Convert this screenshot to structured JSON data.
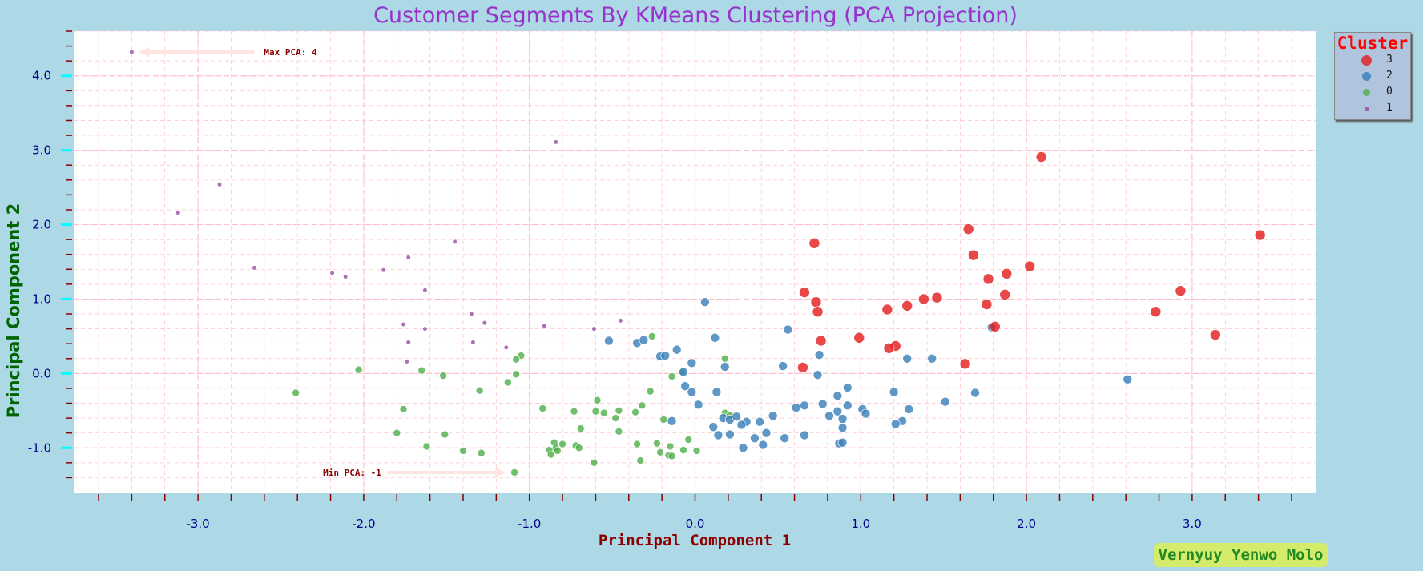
{
  "chart_data": {
    "type": "scatter",
    "title": "Customer Segments By KMeans Clustering (PCA Projection)",
    "xlabel": "Principal Component 1",
    "ylabel": "Principal Component 2",
    "xlim": [
      -3.75,
      3.75
    ],
    "ylim": [
      -1.6,
      4.6
    ],
    "x_ticks": [
      -3.0,
      -2.0,
      -1.0,
      0.0,
      1.0,
      2.0,
      3.0
    ],
    "y_ticks": [
      -1.0,
      0.0,
      1.0,
      2.0,
      3.0,
      4.0
    ],
    "grid": true,
    "legend": {
      "title": "Cluster",
      "position": "outside-top-right"
    },
    "series": [
      {
        "name": "3",
        "color": "#e41a1c",
        "points": [
          [
            2.09,
            2.91
          ],
          [
            3.41,
            1.86
          ],
          [
            1.65,
            1.94
          ],
          [
            1.68,
            1.59
          ],
          [
            0.72,
            1.75
          ],
          [
            2.02,
            1.44
          ],
          [
            1.88,
            1.34
          ],
          [
            1.77,
            1.27
          ],
          [
            2.93,
            1.11
          ],
          [
            0.66,
            1.09
          ],
          [
            1.87,
            1.06
          ],
          [
            1.46,
            1.02
          ],
          [
            1.38,
            1.0
          ],
          [
            0.73,
            0.96
          ],
          [
            1.28,
            0.91
          ],
          [
            1.76,
            0.93
          ],
          [
            1.16,
            0.86
          ],
          [
            0.74,
            0.83
          ],
          [
            2.78,
            0.83
          ],
          [
            1.81,
            0.63
          ],
          [
            3.14,
            0.52
          ],
          [
            0.76,
            0.44
          ],
          [
            0.99,
            0.48
          ],
          [
            1.21,
            0.37
          ],
          [
            1.17,
            0.34
          ],
          [
            1.63,
            0.13
          ],
          [
            0.65,
            0.08
          ]
        ]
      },
      {
        "name": "2",
        "color": "#377eb8",
        "points": [
          [
            0.06,
            0.96
          ],
          [
            -0.52,
            0.44
          ],
          [
            -0.35,
            0.41
          ],
          [
            -0.31,
            0.45
          ],
          [
            -0.11,
            0.32
          ],
          [
            -0.21,
            0.23
          ],
          [
            -0.18,
            0.24
          ],
          [
            -0.02,
            0.14
          ],
          [
            -0.07,
            0.02
          ],
          [
            0.12,
            0.48
          ],
          [
            0.18,
            0.09
          ],
          [
            0.56,
            0.59
          ],
          [
            0.53,
            0.1
          ],
          [
            1.79,
            0.62
          ],
          [
            0.75,
            0.25
          ],
          [
            1.28,
            0.2
          ],
          [
            1.43,
            0.2
          ],
          [
            2.61,
            -0.08
          ],
          [
            0.74,
            -0.02
          ],
          [
            0.92,
            -0.19
          ],
          [
            -0.06,
            -0.17
          ],
          [
            -0.02,
            -0.25
          ],
          [
            0.13,
            -0.25
          ],
          [
            1.2,
            -0.25
          ],
          [
            0.86,
            -0.3
          ],
          [
            1.51,
            -0.38
          ],
          [
            1.69,
            -0.26
          ],
          [
            0.02,
            -0.42
          ],
          [
            0.61,
            -0.46
          ],
          [
            0.66,
            -0.43
          ],
          [
            0.77,
            -0.41
          ],
          [
            0.92,
            -0.43
          ],
          [
            1.01,
            -0.48
          ],
          [
            1.29,
            -0.48
          ],
          [
            1.03,
            -0.54
          ],
          [
            0.86,
            -0.51
          ],
          [
            0.81,
            -0.57
          ],
          [
            0.47,
            -0.57
          ],
          [
            0.89,
            -0.61
          ],
          [
            0.17,
            -0.6
          ],
          [
            0.21,
            -0.62
          ],
          [
            0.25,
            -0.58
          ],
          [
            0.31,
            -0.65
          ],
          [
            0.28,
            -0.69
          ],
          [
            0.39,
            -0.65
          ],
          [
            1.25,
            -0.64
          ],
          [
            1.21,
            -0.68
          ],
          [
            -0.14,
            -0.64
          ],
          [
            0.11,
            -0.72
          ],
          [
            0.89,
            -0.73
          ],
          [
            0.14,
            -0.83
          ],
          [
            0.21,
            -0.82
          ],
          [
            0.36,
            -0.87
          ],
          [
            0.43,
            -0.8
          ],
          [
            0.54,
            -0.87
          ],
          [
            0.66,
            -0.83
          ],
          [
            0.87,
            -0.94
          ],
          [
            0.89,
            -0.93
          ],
          [
            0.29,
            -1.0
          ],
          [
            0.41,
            -0.96
          ]
        ]
      },
      {
        "name": "0",
        "color": "#4daf4a",
        "points": [
          [
            -0.26,
            0.5
          ],
          [
            -1.05,
            0.24
          ],
          [
            -1.08,
            0.19
          ],
          [
            -2.03,
            0.05
          ],
          [
            -1.65,
            0.04
          ],
          [
            -1.52,
            -0.03
          ],
          [
            -1.08,
            -0.01
          ],
          [
            -1.13,
            -0.12
          ],
          [
            -0.14,
            -0.04
          ],
          [
            -0.08,
            0.02
          ],
          [
            0.18,
            0.2
          ],
          [
            -2.41,
            -0.26
          ],
          [
            -1.3,
            -0.23
          ],
          [
            -0.27,
            -0.24
          ],
          [
            -0.92,
            -0.47
          ],
          [
            -1.76,
            -0.48
          ],
          [
            -0.59,
            -0.36
          ],
          [
            -0.36,
            -0.52
          ],
          [
            -0.32,
            -0.43
          ],
          [
            -0.46,
            -0.5
          ],
          [
            -0.6,
            -0.51
          ],
          [
            -0.55,
            -0.53
          ],
          [
            -0.73,
            -0.51
          ],
          [
            -0.48,
            -0.6
          ],
          [
            -0.19,
            -0.62
          ],
          [
            0.18,
            -0.53
          ],
          [
            0.21,
            -0.56
          ],
          [
            -0.69,
            -0.74
          ],
          [
            -0.46,
            -0.78
          ],
          [
            -1.8,
            -0.8
          ],
          [
            -1.51,
            -0.82
          ],
          [
            -1.62,
            -0.98
          ],
          [
            -0.35,
            -0.95
          ],
          [
            -0.23,
            -0.94
          ],
          [
            -0.8,
            -0.95
          ],
          [
            -0.85,
            -0.93
          ],
          [
            -0.84,
            -1.0
          ],
          [
            -0.72,
            -0.97
          ],
          [
            -0.7,
            -1.0
          ],
          [
            -0.15,
            -0.98
          ],
          [
            -0.88,
            -1.03
          ],
          [
            -0.83,
            -1.04
          ],
          [
            -0.87,
            -1.09
          ],
          [
            -0.16,
            -1.1
          ],
          [
            -0.07,
            -1.03
          ],
          [
            -0.21,
            -1.06
          ],
          [
            -0.14,
            -1.11
          ],
          [
            0.01,
            -1.04
          ],
          [
            -0.04,
            -0.89
          ],
          [
            -1.4,
            -1.04
          ],
          [
            -1.29,
            -1.07
          ],
          [
            -0.61,
            -1.2
          ],
          [
            -0.33,
            -1.17
          ],
          [
            -1.09,
            -1.33
          ]
        ]
      },
      {
        "name": "1",
        "color": "#984ea3",
        "points": [
          [
            -3.4,
            4.32
          ],
          [
            -0.84,
            3.11
          ],
          [
            -2.87,
            2.54
          ],
          [
            -3.12,
            2.16
          ],
          [
            -1.45,
            1.77
          ],
          [
            -2.66,
            1.42
          ],
          [
            -1.73,
            1.56
          ],
          [
            -1.88,
            1.39
          ],
          [
            -2.19,
            1.35
          ],
          [
            -2.11,
            1.3
          ],
          [
            -1.63,
            1.12
          ],
          [
            -1.35,
            0.8
          ],
          [
            -1.27,
            0.68
          ],
          [
            -1.76,
            0.66
          ],
          [
            -1.63,
            0.6
          ],
          [
            -0.91,
            0.64
          ],
          [
            -0.61,
            0.6
          ],
          [
            -0.45,
            0.71
          ],
          [
            -1.73,
            0.42
          ],
          [
            -1.34,
            0.42
          ],
          [
            -1.14,
            0.35
          ],
          [
            -1.74,
            0.16
          ]
        ]
      }
    ],
    "annotations": [
      {
        "text": "Max PCA: 4",
        "x": -3.4,
        "y": 4.32
      },
      {
        "text": "Min PCA: -1",
        "x": -1.09,
        "y": -1.33
      }
    ]
  },
  "legend_entries": [
    "3",
    "2",
    "0",
    "1"
  ],
  "watermark": "Vernyuy Yenwo Molo"
}
